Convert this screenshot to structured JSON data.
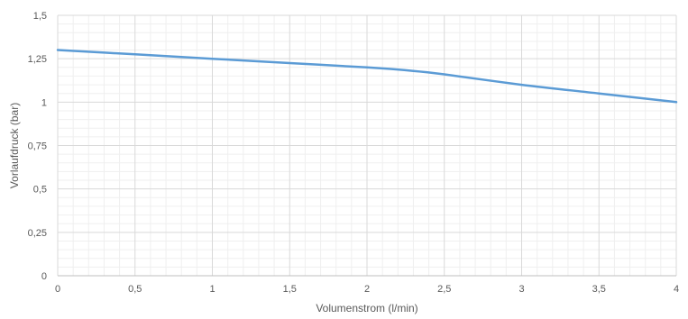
{
  "chart_data": {
    "type": "line",
    "xlabel": "Volumenstrom (l/min)",
    "ylabel": "Vorlaufdruck (bar)",
    "xlim": [
      0,
      4
    ],
    "ylim": [
      0,
      1.5
    ],
    "x_ticks": [
      "0",
      "0,5",
      "1",
      "1,5",
      "2",
      "2,5",
      "3",
      "3,5",
      "4"
    ],
    "y_ticks": [
      "0",
      "0,25",
      "0,5",
      "0,75",
      "1",
      "1,25",
      "1,5"
    ],
    "grid": true,
    "minor_grid": true,
    "legend": "none",
    "series": [
      {
        "color": "#5b9bd5",
        "x": [
          0,
          0.5,
          1,
          1.5,
          2,
          2.3,
          2.5,
          3,
          3.5,
          4
        ],
        "y": [
          1.3,
          1.275,
          1.25,
          1.225,
          1.2,
          1.18,
          1.16,
          1.1,
          1.05,
          1.0
        ]
      }
    ]
  }
}
